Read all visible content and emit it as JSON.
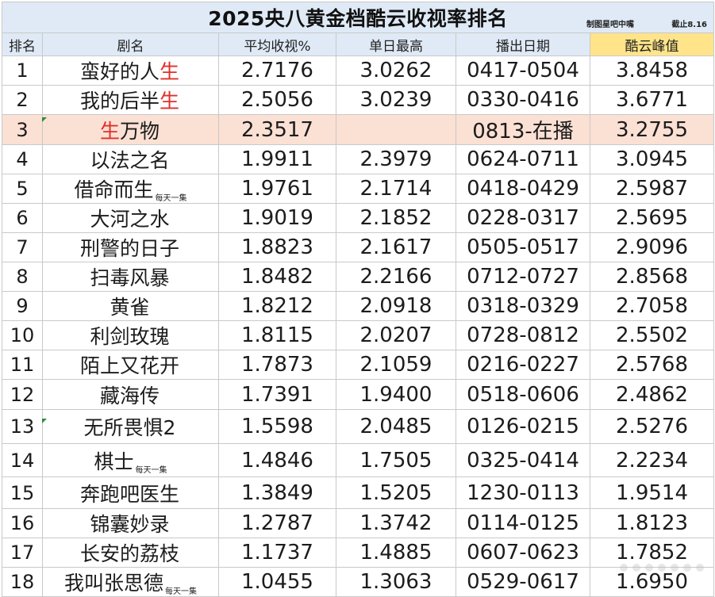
{
  "title": "2025央八黄金档酷云收视率排名",
  "credit": "制图星吧中嘴",
  "cutoff": "截止8.16",
  "columns": {
    "rank": "排名",
    "name": "剧名",
    "avg": "平均收视%",
    "daily_high": "单日最高",
    "air_dates": "播出日期",
    "peak": "酷云峰值"
  },
  "rows": [
    {
      "rank": "1",
      "name_main": "蛮好的人",
      "name_red": "生",
      "name_red_first": false,
      "note": "",
      "avg": "2.7176",
      "high": "3.0262",
      "dates": "0417-0504",
      "peak": "3.8458"
    },
    {
      "rank": "2",
      "name_main": "我的后半",
      "name_red": "生",
      "name_red_first": false,
      "note": "",
      "avg": "2.5056",
      "high": "3.0239",
      "dates": "0330-0416",
      "peak": "3.6771"
    },
    {
      "rank": "3",
      "name_main": "万物",
      "name_red": "生",
      "name_red_first": true,
      "note": "",
      "avg": "2.3517",
      "high": "",
      "dates": "0813-在播",
      "peak": "3.2755"
    },
    {
      "rank": "4",
      "name_main": "以法之名",
      "name_red": "",
      "name_red_first": false,
      "note": "",
      "avg": "1.9911",
      "high": "2.3979",
      "dates": "0624-0711",
      "peak": "3.0945"
    },
    {
      "rank": "5",
      "name_main": "借命而生",
      "name_red": "",
      "name_red_first": false,
      "note": "每天一集",
      "avg": "1.9761",
      "high": "2.1714",
      "dates": "0418-0429",
      "peak": "2.5987"
    },
    {
      "rank": "6",
      "name_main": "大河之水",
      "name_red": "",
      "name_red_first": false,
      "note": "",
      "avg": "1.9019",
      "high": "2.1852",
      "dates": "0228-0317",
      "peak": "2.5695"
    },
    {
      "rank": "7",
      "name_main": "刑警的日子",
      "name_red": "",
      "name_red_first": false,
      "note": "",
      "avg": "1.8823",
      "high": "2.1617",
      "dates": "0505-0517",
      "peak": "2.9096"
    },
    {
      "rank": "8",
      "name_main": "扫毒风暴",
      "name_red": "",
      "name_red_first": false,
      "note": "",
      "avg": "1.8482",
      "high": "2.2166",
      "dates": "0712-0727",
      "peak": "2.8568"
    },
    {
      "rank": "9",
      "name_main": "黄雀",
      "name_red": "",
      "name_red_first": false,
      "note": "",
      "avg": "1.8212",
      "high": "2.0918",
      "dates": "0318-0329",
      "peak": "2.7058"
    },
    {
      "rank": "10",
      "name_main": "利剑玫瑰",
      "name_red": "",
      "name_red_first": false,
      "note": "",
      "avg": "1.8115",
      "high": "2.0207",
      "dates": "0728-0812",
      "peak": "2.5502"
    },
    {
      "rank": "11",
      "name_main": "陌上又花开",
      "name_red": "",
      "name_red_first": false,
      "note": "",
      "avg": "1.7873",
      "high": "2.1059",
      "dates": "0216-0227",
      "peak": "2.5768"
    },
    {
      "rank": "12",
      "name_main": "藏海传",
      "name_red": "",
      "name_red_first": false,
      "note": "",
      "avg": "1.7391",
      "high": "1.9400",
      "dates": "0518-0606",
      "peak": "2.4862"
    },
    {
      "rank": "13",
      "name_main": "无所畏惧2",
      "name_red": "",
      "name_red_first": false,
      "note": "",
      "avg": "1.5598",
      "high": "2.0485",
      "dates": "0126-0215",
      "peak": "2.5276"
    },
    {
      "rank": "14",
      "name_main": "棋士",
      "name_red": "",
      "name_red_first": false,
      "note": "每天一集",
      "avg": "1.4846",
      "high": "1.7505",
      "dates": "0325-0414",
      "peak": "2.2234"
    },
    {
      "rank": "15",
      "name_main": "奔跑吧医生",
      "name_red": "",
      "name_red_first": false,
      "note": "",
      "avg": "1.3849",
      "high": "1.5205",
      "dates": "1230-0113",
      "peak": "1.9514"
    },
    {
      "rank": "16",
      "name_main": "锦囊妙录",
      "name_red": "",
      "name_red_first": false,
      "note": "",
      "avg": "1.2787",
      "high": "1.3742",
      "dates": "0114-0125",
      "peak": "1.8123"
    },
    {
      "rank": "17",
      "name_main": "长安的荔枝",
      "name_red": "",
      "name_red_first": false,
      "note": "",
      "avg": "1.1737",
      "high": "1.4885",
      "dates": "0607-0623",
      "peak": "1.7852"
    },
    {
      "rank": "18",
      "name_main": "我叫张思德",
      "name_red": "",
      "name_red_first": false,
      "note": "每天一集",
      "avg": "1.0455",
      "high": "1.3063",
      "dates": "0529-0617",
      "peak": "1.6950"
    }
  ],
  "colors": {
    "header_bg": "#dfeaf6",
    "peak_header_bg": "#ffe48a",
    "highlight_row_bg": "#fbe0d4",
    "accent_red": "#e0302a",
    "grid_line": "#c9c9c9"
  }
}
